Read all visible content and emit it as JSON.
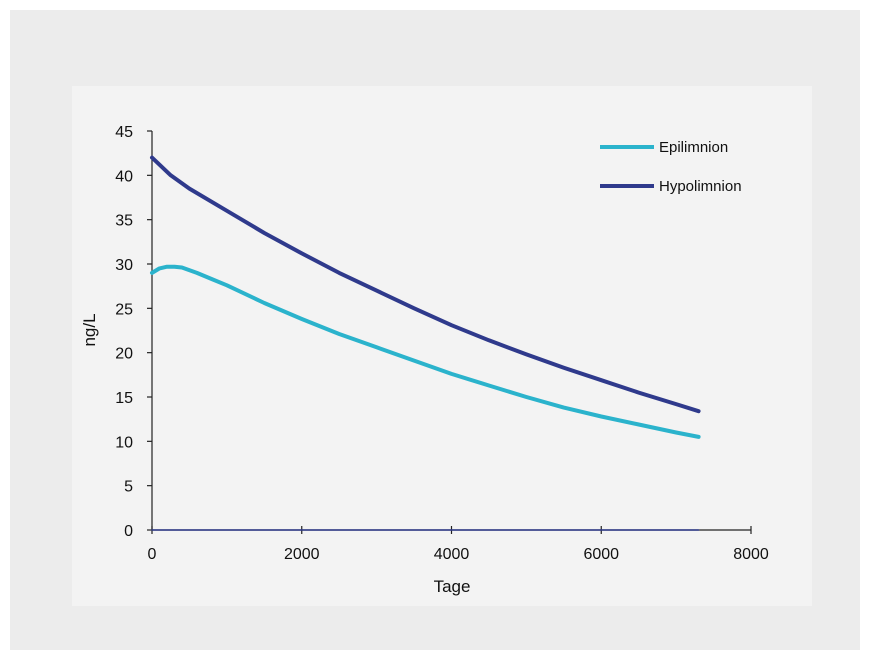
{
  "colors": {
    "page_background": "#ffffff",
    "panel_outer": "#ececec",
    "panel_inner": "#f3f3f3",
    "axis": "#222222",
    "epilimnion": "#2bb3cc",
    "hypolimnion": "#2f3a8c"
  },
  "chart_data": {
    "type": "line",
    "title": "",
    "xlabel": "Tage",
    "ylabel": "ng/L",
    "xlim": [
      0,
      8000
    ],
    "ylim": [
      0,
      45
    ],
    "x_ticks": [
      0,
      2000,
      4000,
      6000,
      8000
    ],
    "y_ticks": [
      0,
      5,
      10,
      15,
      20,
      25,
      30,
      35,
      40,
      45
    ],
    "x_tick_labels": [
      "0",
      "2000",
      "4000",
      "6000",
      "8000"
    ],
    "y_tick_labels": [
      "0",
      "5",
      "10",
      "15",
      "20",
      "25",
      "30",
      "35",
      "40",
      "45"
    ],
    "grid": false,
    "legend_position": "top-right",
    "series": [
      {
        "name": "Epilimnion",
        "color": "#2bb3cc",
        "x": [
          0,
          100,
          200,
          300,
          400,
          600,
          800,
          1000,
          1500,
          2000,
          2500,
          3000,
          3500,
          4000,
          4500,
          5000,
          5500,
          6000,
          6500,
          7000,
          7300
        ],
        "y": [
          29.0,
          29.5,
          29.7,
          29.7,
          29.6,
          29.0,
          28.3,
          27.6,
          25.6,
          23.8,
          22.1,
          20.6,
          19.1,
          17.6,
          16.3,
          15.0,
          13.8,
          12.8,
          11.9,
          11.0,
          10.5
        ]
      },
      {
        "name": "Hypolimnion",
        "color": "#2f3a8c",
        "x": [
          0,
          250,
          500,
          1000,
          1500,
          2000,
          2500,
          3000,
          3500,
          4000,
          4500,
          5000,
          5500,
          6000,
          6500,
          7000,
          7300
        ],
        "y": [
          42.0,
          40.0,
          38.5,
          36.0,
          33.5,
          31.2,
          29.0,
          27.0,
          25.0,
          23.1,
          21.4,
          19.8,
          18.3,
          16.9,
          15.5,
          14.2,
          13.4
        ]
      },
      {
        "name": "",
        "color": "#2f3a8c",
        "x": [
          0,
          7300
        ],
        "y": [
          0,
          0
        ]
      }
    ]
  }
}
